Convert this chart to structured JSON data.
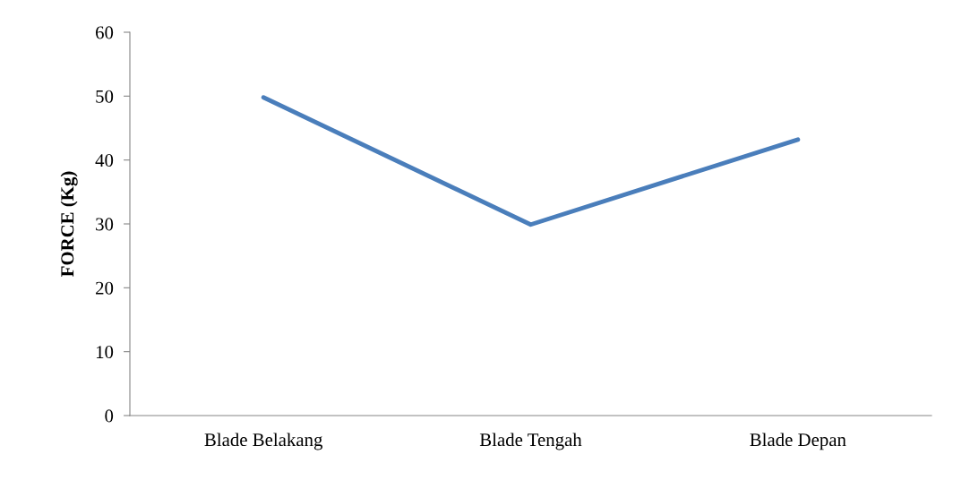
{
  "chart_data": {
    "type": "line",
    "ylabel": "FORCE (Kg)",
    "categories": [
      "Blade Belakang",
      "Blade Tengah",
      "Blade Depan"
    ],
    "series": [
      {
        "color": "#4a7ebb",
        "values": [
          49.8,
          29.9,
          43.2
        ]
      }
    ],
    "ylim": [
      0,
      60
    ],
    "yticks": [
      0,
      10,
      20,
      30,
      40,
      50,
      60
    ],
    "grid": false,
    "legend": false,
    "marker": "none",
    "line_style": "solid"
  }
}
